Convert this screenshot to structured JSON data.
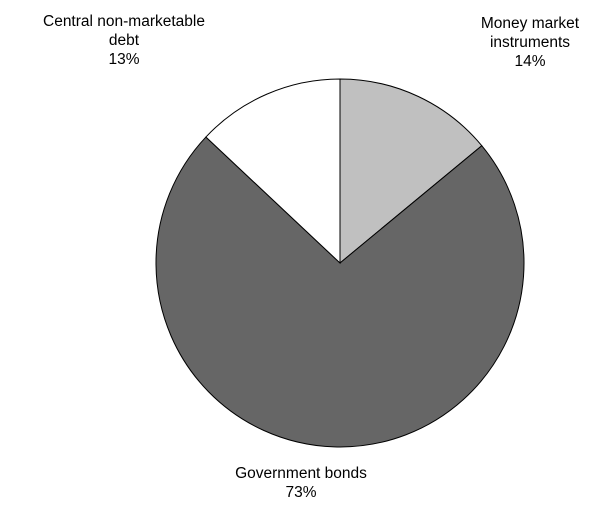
{
  "chart_data": {
    "type": "pie",
    "title": "",
    "start_angle_deg": 0,
    "direction": "clockwise",
    "slices": [
      {
        "label_lines": [
          "Money market",
          "instruments"
        ],
        "value": 14,
        "value_label": "14%",
        "color": "#c0c0c0"
      },
      {
        "label_lines": [
          "Government bonds"
        ],
        "value": 73,
        "value_label": "73%",
        "color": "#666666"
      },
      {
        "label_lines": [
          "Central non-marketable",
          "debt"
        ],
        "value": 13,
        "value_label": "13%",
        "color": "#ffffff"
      }
    ]
  }
}
